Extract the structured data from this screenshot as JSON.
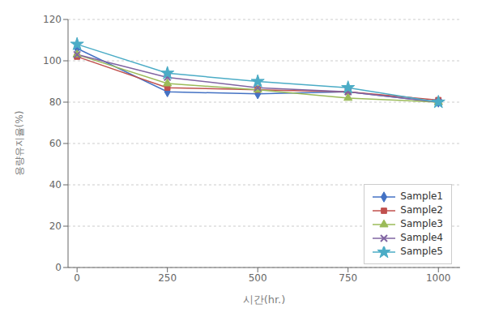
{
  "chart_data": {
    "type": "line",
    "x": [
      0,
      250,
      500,
      750,
      1000
    ],
    "series": [
      {
        "name": "Sample1",
        "color": "#4472C4",
        "marker": "diamond",
        "values": [
          106,
          85,
          84,
          85,
          80
        ]
      },
      {
        "name": "Sample2",
        "color": "#C0504D",
        "marker": "square",
        "values": [
          102,
          87,
          86,
          85,
          81
        ]
      },
      {
        "name": "Sample3",
        "color": "#9BBB59",
        "marker": "triangle",
        "values": [
          103,
          89,
          86,
          82,
          80
        ]
      },
      {
        "name": "Sample4",
        "color": "#8064A2",
        "marker": "x",
        "values": [
          103,
          92,
          87,
          85,
          80
        ]
      },
      {
        "name": "Sample5",
        "color": "#4BACC6",
        "marker": "star",
        "values": [
          108,
          94,
          90,
          87,
          80
        ]
      }
    ],
    "xlabel": "시간(hr.)",
    "ylabel": "용량유지율(%)",
    "xlim": [
      -25,
      1060
    ],
    "ylim": [
      0,
      120
    ],
    "xticks": [
      0,
      250,
      500,
      750,
      1000
    ],
    "yticks": [
      0,
      20,
      40,
      60,
      80,
      100,
      120
    ],
    "grid": true,
    "legend": "lower right"
  }
}
